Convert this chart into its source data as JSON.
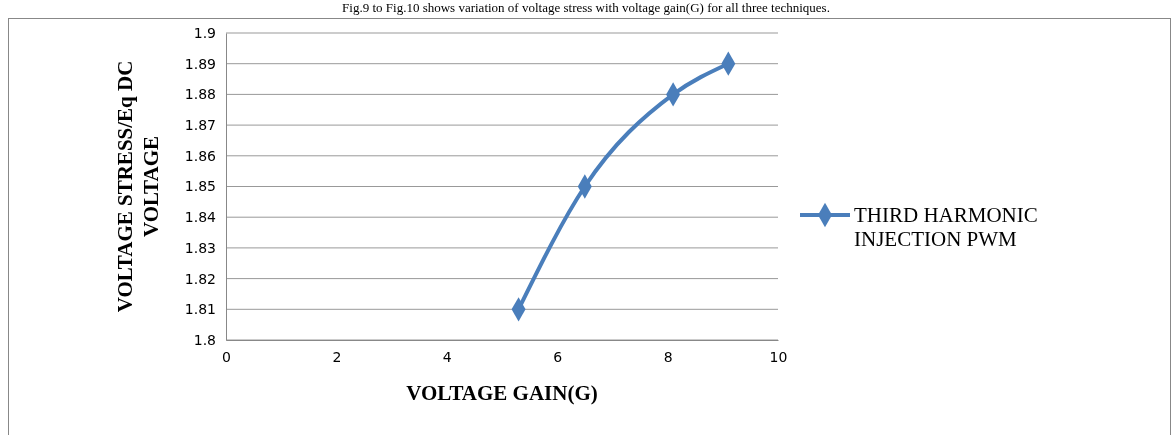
{
  "chart_data": {
    "type": "line",
    "xlabel": "VOLTAGE  GAIN(G)",
    "ylabel": "VOLTAGE  STRESS/Eq DC VOLTAGE",
    "annotations": [
      "Fig.9 to Fig.10 shows variation of voltage stress with voltage gain(G) for all three techniques."
    ],
    "x": [
      5.3,
      6.5,
      8.1,
      9.1
    ],
    "series": [
      {
        "name": "THIRD HARMONIC INJECTION PWM",
        "color": "#4a7ebb",
        "values": [
          1.81,
          1.85,
          1.88,
          1.89
        ]
      }
    ],
    "xlim": [
      0,
      10
    ],
    "xticks": [
      0,
      2,
      4,
      6,
      8,
      10
    ],
    "ylim": [
      1.8,
      1.9
    ],
    "yticks": [
      1.8,
      1.81,
      1.82,
      1.83,
      1.84,
      1.85,
      1.86,
      1.87,
      1.88,
      1.89,
      1.9
    ],
    "grid": "y",
    "legend": "right",
    "marker": "diamond",
    "line_style": "solid"
  }
}
